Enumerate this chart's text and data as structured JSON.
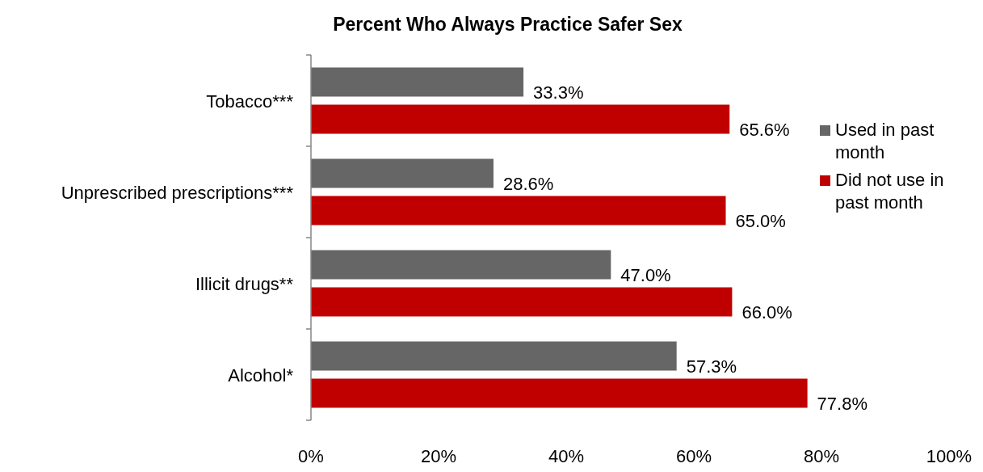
{
  "chart_data": {
    "type": "bar",
    "orientation": "horizontal",
    "title": "Percent Who Always Practice Safer Sex",
    "categories": [
      "Tobacco***",
      "Unprescribed prescriptions***",
      "Illicit drugs**",
      "Alcohol*"
    ],
    "series": [
      {
        "name": "Used in past month",
        "color": "#666666",
        "values": [
          33.3,
          28.6,
          47.0,
          57.3
        ],
        "value_labels": [
          "33.3%",
          "28.6%",
          "47.0%",
          "57.3%"
        ]
      },
      {
        "name": "Did not use in past month",
        "color": "#c00000",
        "values": [
          65.6,
          65.0,
          66.0,
          77.8
        ],
        "value_labels": [
          "65.6%",
          "65.0%",
          "66.0%",
          "77.8%"
        ]
      }
    ],
    "xlim": [
      0,
      100
    ],
    "xticks": [
      {
        "value": 0,
        "label": "0%"
      },
      {
        "value": 20,
        "label": "20%"
      },
      {
        "value": 40,
        "label": "40%"
      },
      {
        "value": 60,
        "label": "60%"
      },
      {
        "value": 80,
        "label": "80%"
      },
      {
        "value": 100,
        "label": "100%"
      }
    ],
    "grid": false,
    "legend": "right"
  }
}
